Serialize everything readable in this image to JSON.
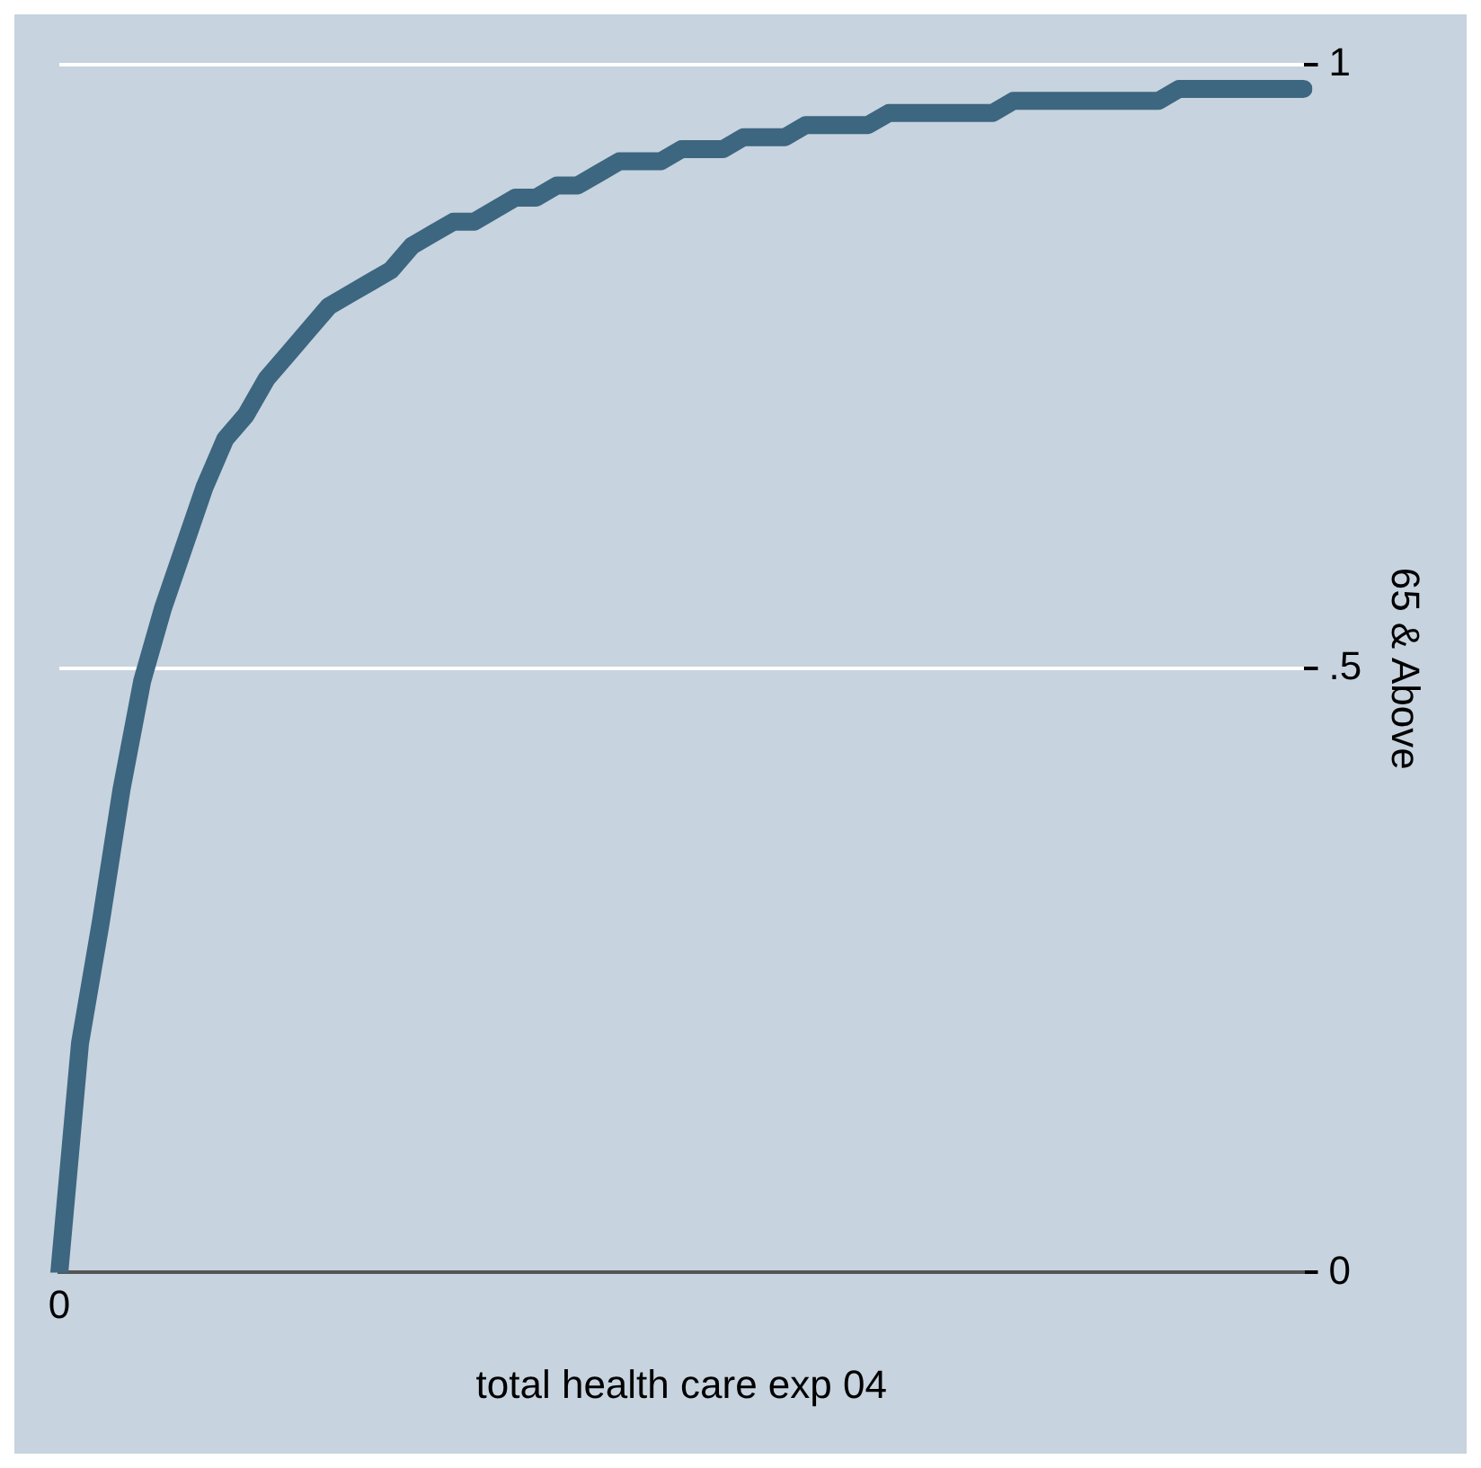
{
  "chart_data": {
    "type": "line",
    "xlabel": "total health care exp 04",
    "ylabel": "65 & Above",
    "categories": [
      "0",
      null,
      null,
      null,
      null,
      null,
      null,
      null,
      null,
      null,
      null,
      null,
      null,
      null,
      null,
      null,
      null,
      null,
      null,
      null,
      null,
      null,
      null,
      null,
      null,
      null,
      null,
      null,
      null,
      null,
      null,
      null,
      null,
      null,
      null,
      null,
      null,
      null,
      null,
      null,
      null,
      null,
      null,
      null,
      null,
      null,
      null,
      null,
      null,
      null,
      null,
      null,
      null,
      null,
      null,
      null,
      null,
      null,
      null,
      null,
      null
    ],
    "series": [
      {
        "color": "#3d6680",
        "values": [
          0,
          0.19,
          0.29,
          0.4,
          0.49,
          0.55,
          0.6,
          0.65,
          0.69,
          0.71,
          0.74,
          0.76,
          0.78,
          0.8,
          0.81,
          0.82,
          0.83,
          0.85,
          0.86,
          0.87,
          0.87,
          0.88,
          0.89,
          0.89,
          0.9,
          0.9,
          0.91,
          0.92,
          0.92,
          0.92,
          0.93,
          0.93,
          0.93,
          0.94,
          0.94,
          0.94,
          0.95,
          0.95,
          0.95,
          0.95,
          0.96,
          0.96,
          0.96,
          0.96,
          0.96,
          0.96,
          0.97,
          0.97,
          0.97,
          0.97,
          0.97,
          0.97,
          0.97,
          0.97,
          0.98,
          0.98,
          0.98,
          0.98,
          0.98,
          0.98,
          0.98
        ]
      }
    ],
    "ylim": [
      0,
      1
    ],
    "yticks": [
      0,
      {
        "value": 0.5,
        "label": ".5"
      },
      1
    ],
    "grid": "y",
    "legend": false,
    "marker": "none",
    "line_style": "solid"
  }
}
